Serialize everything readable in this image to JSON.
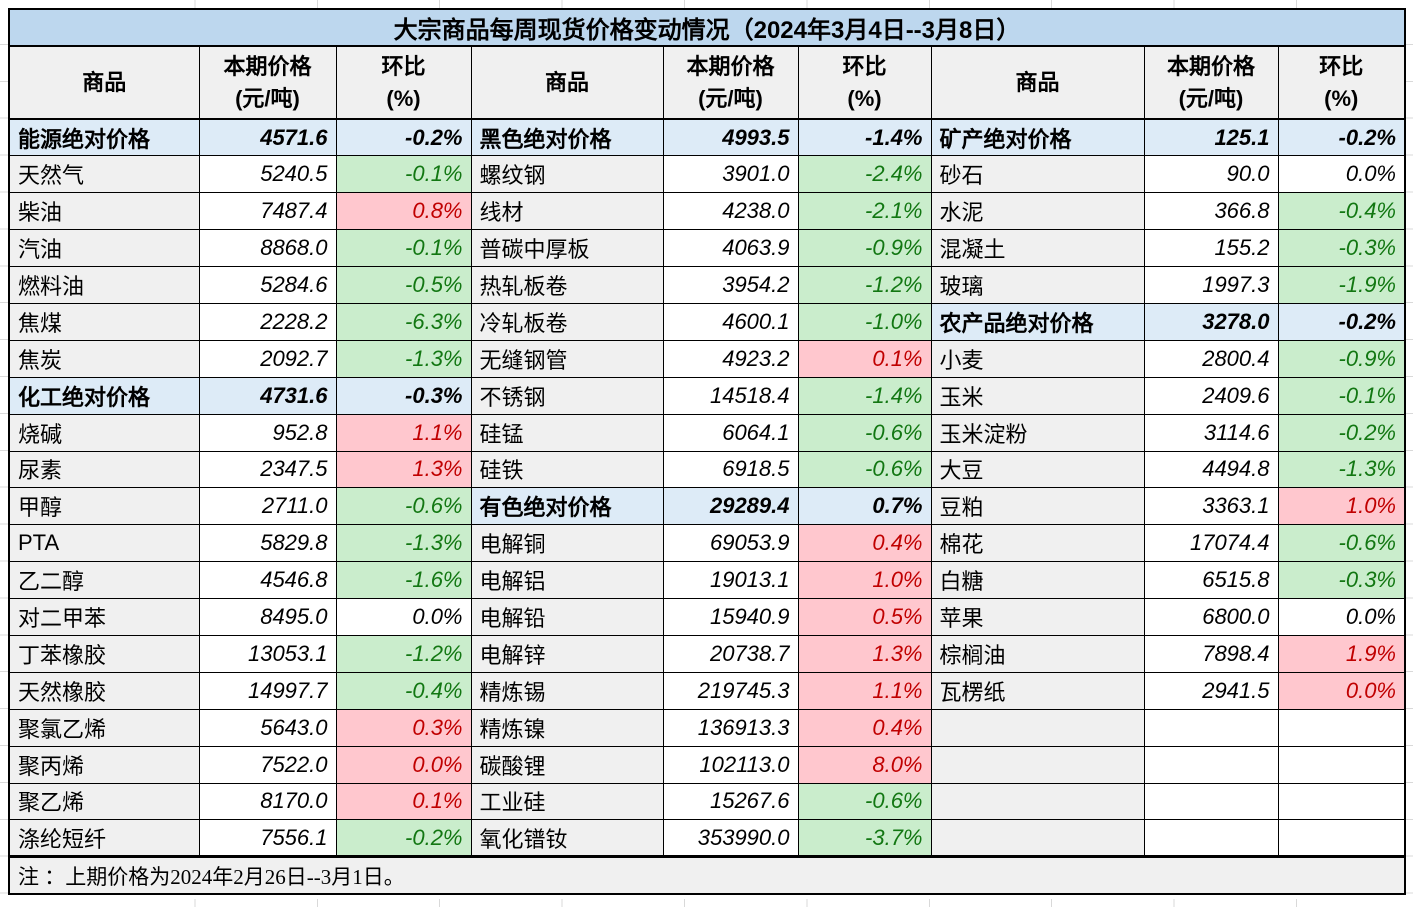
{
  "title": "大宗商品每周现货价格变动情况（2024年3月4日--3月8日）",
  "note": "注 ：上期价格为2024年2月26日--3月1日。",
  "header": {
    "commodity": "商品",
    "price_line1": "本期价格",
    "price_line2": "(元/吨)",
    "pct_line1": "环比",
    "pct_line2": "(%)"
  },
  "colors": {
    "title_bg": "#BDD7EE",
    "section_bg": "#DDEBF7",
    "name_bg": "#F0F0F0",
    "up_bg": "#FFC7CE",
    "up_text": "#C00000",
    "down_bg": "#CAEDCC",
    "down_text": "#127712"
  },
  "rows": [
    [
      {
        "name": "能源绝对价格",
        "price": "4571.6",
        "pct": "-0.2%",
        "kind": "section"
      },
      {
        "name": "黑色绝对价格",
        "price": "4993.5",
        "pct": "-1.4%",
        "kind": "section"
      },
      {
        "name": "矿产绝对价格",
        "price": "125.1",
        "pct": "-0.2%",
        "kind": "section"
      }
    ],
    [
      {
        "name": "天然气",
        "price": "5240.5",
        "pct": "-0.1%",
        "kind": "item",
        "tone": "down"
      },
      {
        "name": "螺纹钢",
        "price": "3901.0",
        "pct": "-2.4%",
        "kind": "item",
        "tone": "down"
      },
      {
        "name": "砂石",
        "price": "90.0",
        "pct": "0.0%",
        "kind": "item",
        "tone": "flat"
      }
    ],
    [
      {
        "name": "柴油",
        "price": "7487.4",
        "pct": "0.8%",
        "kind": "item",
        "tone": "up"
      },
      {
        "name": "线材",
        "price": "4238.0",
        "pct": "-2.1%",
        "kind": "item",
        "tone": "down"
      },
      {
        "name": "水泥",
        "price": "366.8",
        "pct": "-0.4%",
        "kind": "item",
        "tone": "down"
      }
    ],
    [
      {
        "name": "汽油",
        "price": "8868.0",
        "pct": "-0.1%",
        "kind": "item",
        "tone": "down"
      },
      {
        "name": "普碳中厚板",
        "price": "4063.9",
        "pct": "-0.9%",
        "kind": "item",
        "tone": "down"
      },
      {
        "name": "混凝土",
        "price": "155.2",
        "pct": "-0.3%",
        "kind": "item",
        "tone": "down"
      }
    ],
    [
      {
        "name": "燃料油",
        "price": "5284.6",
        "pct": "-0.5%",
        "kind": "item",
        "tone": "down"
      },
      {
        "name": "热轧板卷",
        "price": "3954.2",
        "pct": "-1.2%",
        "kind": "item",
        "tone": "down"
      },
      {
        "name": "玻璃",
        "price": "1997.3",
        "pct": "-1.9%",
        "kind": "item",
        "tone": "down"
      }
    ],
    [
      {
        "name": "焦煤",
        "price": "2228.2",
        "pct": "-6.3%",
        "kind": "item",
        "tone": "down"
      },
      {
        "name": "冷轧板卷",
        "price": "4600.1",
        "pct": "-1.0%",
        "kind": "item",
        "tone": "down"
      },
      {
        "name": "农产品绝对价格",
        "price": "3278.0",
        "pct": "-0.2%",
        "kind": "section"
      }
    ],
    [
      {
        "name": "焦炭",
        "price": "2092.7",
        "pct": "-1.3%",
        "kind": "item",
        "tone": "down"
      },
      {
        "name": "无缝钢管",
        "price": "4923.2",
        "pct": "0.1%",
        "kind": "item",
        "tone": "up"
      },
      {
        "name": "小麦",
        "price": "2800.4",
        "pct": "-0.9%",
        "kind": "item",
        "tone": "down"
      }
    ],
    [
      {
        "name": "化工绝对价格",
        "price": "4731.6",
        "pct": "-0.3%",
        "kind": "section"
      },
      {
        "name": "不锈钢",
        "price": "14518.4",
        "pct": "-1.4%",
        "kind": "item",
        "tone": "down"
      },
      {
        "name": "玉米",
        "price": "2409.6",
        "pct": "-0.1%",
        "kind": "item",
        "tone": "down"
      }
    ],
    [
      {
        "name": "烧碱",
        "price": "952.8",
        "pct": "1.1%",
        "kind": "item",
        "tone": "up"
      },
      {
        "name": "硅锰",
        "price": "6064.1",
        "pct": "-0.6%",
        "kind": "item",
        "tone": "down"
      },
      {
        "name": "玉米淀粉",
        "price": "3114.6",
        "pct": "-0.2%",
        "kind": "item",
        "tone": "down"
      }
    ],
    [
      {
        "name": "尿素",
        "price": "2347.5",
        "pct": "1.3%",
        "kind": "item",
        "tone": "up"
      },
      {
        "name": "硅铁",
        "price": "6918.5",
        "pct": "-0.6%",
        "kind": "item",
        "tone": "down"
      },
      {
        "name": "大豆",
        "price": "4494.8",
        "pct": "-1.3%",
        "kind": "item",
        "tone": "down"
      }
    ],
    [
      {
        "name": "甲醇",
        "price": "2711.0",
        "pct": "-0.6%",
        "kind": "item",
        "tone": "down"
      },
      {
        "name": "有色绝对价格",
        "price": "29289.4",
        "pct": "0.7%",
        "kind": "section"
      },
      {
        "name": "豆粕",
        "price": "3363.1",
        "pct": "1.0%",
        "kind": "item",
        "tone": "up"
      }
    ],
    [
      {
        "name": "PTA",
        "price": "5829.8",
        "pct": "-1.3%",
        "kind": "item",
        "tone": "down"
      },
      {
        "name": "电解铜",
        "price": "69053.9",
        "pct": "0.4%",
        "kind": "item",
        "tone": "up"
      },
      {
        "name": "棉花",
        "price": "17074.4",
        "pct": "-0.6%",
        "kind": "item",
        "tone": "down"
      }
    ],
    [
      {
        "name": "乙二醇",
        "price": "4546.8",
        "pct": "-1.6%",
        "kind": "item",
        "tone": "down"
      },
      {
        "name": "电解铝",
        "price": "19013.1",
        "pct": "1.0%",
        "kind": "item",
        "tone": "up"
      },
      {
        "name": "白糖",
        "price": "6515.8",
        "pct": "-0.3%",
        "kind": "item",
        "tone": "down"
      }
    ],
    [
      {
        "name": "对二甲苯",
        "price": "8495.0",
        "pct": "0.0%",
        "kind": "item",
        "tone": "flat"
      },
      {
        "name": "电解铅",
        "price": "15940.9",
        "pct": "0.5%",
        "kind": "item",
        "tone": "up"
      },
      {
        "name": "苹果",
        "price": "6800.0",
        "pct": "0.0%",
        "kind": "item",
        "tone": "flat"
      }
    ],
    [
      {
        "name": "丁苯橡胶",
        "price": "13053.1",
        "pct": "-1.2%",
        "kind": "item",
        "tone": "down"
      },
      {
        "name": "电解锌",
        "price": "20738.7",
        "pct": "1.3%",
        "kind": "item",
        "tone": "up"
      },
      {
        "name": "棕榈油",
        "price": "7898.4",
        "pct": "1.9%",
        "kind": "item",
        "tone": "up"
      }
    ],
    [
      {
        "name": "天然橡胶",
        "price": "14997.7",
        "pct": "-0.4%",
        "kind": "item",
        "tone": "down"
      },
      {
        "name": "精炼锡",
        "price": "219745.3",
        "pct": "1.1%",
        "kind": "item",
        "tone": "up"
      },
      {
        "name": "瓦楞纸",
        "price": "2941.5",
        "pct": "0.0%",
        "kind": "item",
        "tone": "up"
      }
    ],
    [
      {
        "name": "聚氯乙烯",
        "price": "5643.0",
        "pct": "0.3%",
        "kind": "item",
        "tone": "up"
      },
      {
        "name": "精炼镍",
        "price": "136913.3",
        "pct": "0.4%",
        "kind": "item",
        "tone": "up"
      },
      {
        "name": "",
        "price": "",
        "pct": "",
        "kind": "empty"
      }
    ],
    [
      {
        "name": "聚丙烯",
        "price": "7522.0",
        "pct": "0.0%",
        "kind": "item",
        "tone": "up"
      },
      {
        "name": "碳酸锂",
        "price": "102113.0",
        "pct": "8.0%",
        "kind": "item",
        "tone": "up"
      },
      {
        "name": "",
        "price": "",
        "pct": "",
        "kind": "empty"
      }
    ],
    [
      {
        "name": "聚乙烯",
        "price": "8170.0",
        "pct": "0.1%",
        "kind": "item",
        "tone": "up"
      },
      {
        "name": "工业硅",
        "price": "15267.6",
        "pct": "-0.6%",
        "kind": "item",
        "tone": "down"
      },
      {
        "name": "",
        "price": "",
        "pct": "",
        "kind": "empty"
      }
    ],
    [
      {
        "name": "涤纶短纤",
        "price": "7556.1",
        "pct": "-0.2%",
        "kind": "item",
        "tone": "down"
      },
      {
        "name": "氧化镨钕",
        "price": "353990.0",
        "pct": "-3.7%",
        "kind": "item",
        "tone": "down"
      },
      {
        "name": "",
        "price": "",
        "pct": "",
        "kind": "empty"
      }
    ]
  ]
}
